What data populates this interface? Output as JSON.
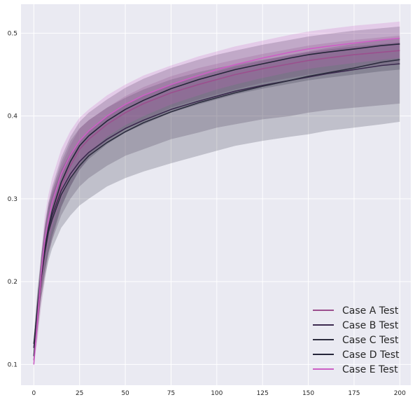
{
  "chart_data": {
    "type": "line",
    "title": "",
    "xlabel": "",
    "ylabel": "",
    "xlim": [
      -7,
      206
    ],
    "ylim": [
      0.075,
      0.535
    ],
    "xticks": [
      0,
      25,
      50,
      75,
      100,
      125,
      150,
      175,
      200
    ],
    "yticks": [
      0.1,
      0.2,
      0.3,
      0.4,
      0.5
    ],
    "grid": true,
    "legend_position": "bottom-right",
    "series": [
      {
        "name": "Case A Test",
        "color": "#9b4f8e",
        "x": [
          0,
          2,
          4,
          6,
          8,
          10,
          15,
          20,
          25,
          30,
          40,
          50,
          60,
          75,
          90,
          100,
          110,
          125,
          140,
          150,
          160,
          175,
          190,
          200
        ],
        "y": [
          0.105,
          0.15,
          0.2,
          0.235,
          0.26,
          0.28,
          0.315,
          0.34,
          0.36,
          0.372,
          0.39,
          0.404,
          0.415,
          0.428,
          0.438,
          0.444,
          0.45,
          0.457,
          0.463,
          0.467,
          0.47,
          0.474,
          0.477,
          0.479
        ],
        "band_lower": [
          0.1,
          0.13,
          0.17,
          0.2,
          0.23,
          0.25,
          0.29,
          0.315,
          0.335,
          0.35,
          0.37,
          0.384,
          0.395,
          0.41,
          0.42,
          0.426,
          0.432,
          0.44,
          0.446,
          0.45,
          0.453,
          0.458,
          0.462,
          0.464
        ],
        "band_upper": [
          0.11,
          0.17,
          0.23,
          0.265,
          0.29,
          0.31,
          0.34,
          0.365,
          0.385,
          0.395,
          0.41,
          0.424,
          0.435,
          0.448,
          0.458,
          0.463,
          0.468,
          0.475,
          0.481,
          0.485,
          0.488,
          0.492,
          0.495,
          0.497
        ]
      },
      {
        "name": "Case B Test",
        "color": "#3c2a4f",
        "x": [
          0,
          2,
          4,
          6,
          8,
          10,
          15,
          20,
          25,
          30,
          40,
          50,
          60,
          75,
          90,
          100,
          110,
          125,
          140,
          150,
          160,
          175,
          190,
          200
        ],
        "y": [
          0.12,
          0.17,
          0.21,
          0.24,
          0.265,
          0.28,
          0.31,
          0.33,
          0.345,
          0.356,
          0.372,
          0.385,
          0.395,
          0.408,
          0.418,
          0.424,
          0.43,
          0.437,
          0.443,
          0.447,
          0.451,
          0.456,
          0.461,
          0.463
        ],
        "band_lower": [
          0.11,
          0.15,
          0.19,
          0.215,
          0.235,
          0.25,
          0.28,
          0.3,
          0.315,
          0.325,
          0.34,
          0.352,
          0.36,
          0.372,
          0.38,
          0.386,
          0.39,
          0.396,
          0.4,
          0.404,
          0.407,
          0.41,
          0.413,
          0.415
        ],
        "band_upper": [
          0.13,
          0.19,
          0.23,
          0.265,
          0.29,
          0.305,
          0.335,
          0.355,
          0.37,
          0.382,
          0.4,
          0.414,
          0.425,
          0.438,
          0.448,
          0.454,
          0.46,
          0.467,
          0.474,
          0.478,
          0.482,
          0.487,
          0.492,
          0.494
        ]
      },
      {
        "name": "Case C Test",
        "color": "#2d2d3f",
        "x": [
          0,
          2,
          4,
          6,
          8,
          10,
          15,
          20,
          25,
          30,
          40,
          50,
          60,
          75,
          90,
          100,
          110,
          125,
          140,
          150,
          160,
          175,
          190,
          200
        ],
        "y": [
          0.125,
          0.165,
          0.205,
          0.235,
          0.26,
          0.275,
          0.305,
          0.325,
          0.34,
          0.352,
          0.368,
          0.381,
          0.392,
          0.405,
          0.416,
          0.422,
          0.428,
          0.436,
          0.443,
          0.448,
          0.452,
          0.458,
          0.465,
          0.468
        ],
        "band_lower": [
          0.115,
          0.145,
          0.18,
          0.205,
          0.225,
          0.24,
          0.265,
          0.28,
          0.292,
          0.3,
          0.315,
          0.325,
          0.333,
          0.343,
          0.352,
          0.358,
          0.364,
          0.37,
          0.375,
          0.378,
          0.382,
          0.386,
          0.39,
          0.393
        ],
        "band_upper": [
          0.135,
          0.185,
          0.23,
          0.265,
          0.295,
          0.31,
          0.345,
          0.37,
          0.385,
          0.395,
          0.41,
          0.422,
          0.432,
          0.444,
          0.453,
          0.458,
          0.462,
          0.468,
          0.473,
          0.477,
          0.48,
          0.484,
          0.487,
          0.489
        ]
      },
      {
        "name": "Case D Test",
        "color": "#26263a",
        "x": [
          0,
          2,
          4,
          6,
          8,
          10,
          15,
          20,
          25,
          30,
          40,
          50,
          60,
          75,
          90,
          100,
          110,
          125,
          140,
          150,
          160,
          175,
          190,
          200
        ],
        "y": [
          0.11,
          0.16,
          0.205,
          0.24,
          0.265,
          0.285,
          0.32,
          0.345,
          0.364,
          0.376,
          0.394,
          0.408,
          0.419,
          0.433,
          0.444,
          0.45,
          0.456,
          0.463,
          0.47,
          0.474,
          0.477,
          0.481,
          0.485,
          0.487
        ],
        "band_lower": [
          0.1,
          0.14,
          0.18,
          0.21,
          0.235,
          0.255,
          0.29,
          0.315,
          0.335,
          0.348,
          0.366,
          0.38,
          0.39,
          0.404,
          0.414,
          0.42,
          0.426,
          0.433,
          0.439,
          0.443,
          0.446,
          0.45,
          0.454,
          0.456
        ],
        "band_upper": [
          0.12,
          0.18,
          0.23,
          0.27,
          0.295,
          0.315,
          0.35,
          0.375,
          0.393,
          0.404,
          0.42,
          0.434,
          0.445,
          0.458,
          0.468,
          0.474,
          0.479,
          0.486,
          0.492,
          0.496,
          0.499,
          0.503,
          0.506,
          0.508
        ]
      },
      {
        "name": "Case E Test",
        "color": "#cc5fc5",
        "x": [
          0,
          2,
          4,
          6,
          8,
          10,
          15,
          20,
          25,
          30,
          40,
          50,
          60,
          75,
          90,
          100,
          110,
          125,
          140,
          150,
          160,
          175,
          190,
          200
        ],
        "y": [
          0.1,
          0.155,
          0.21,
          0.25,
          0.275,
          0.295,
          0.33,
          0.353,
          0.37,
          0.382,
          0.4,
          0.414,
          0.425,
          0.438,
          0.449,
          0.456,
          0.462,
          0.47,
          0.477,
          0.481,
          0.484,
          0.488,
          0.492,
          0.494
        ],
        "band_lower": [
          0.095,
          0.135,
          0.185,
          0.22,
          0.245,
          0.265,
          0.3,
          0.325,
          0.343,
          0.356,
          0.375,
          0.389,
          0.4,
          0.414,
          0.425,
          0.432,
          0.438,
          0.446,
          0.453,
          0.457,
          0.46,
          0.464,
          0.468,
          0.47
        ],
        "band_upper": [
          0.105,
          0.175,
          0.235,
          0.28,
          0.305,
          0.325,
          0.36,
          0.382,
          0.398,
          0.408,
          0.425,
          0.438,
          0.449,
          0.461,
          0.472,
          0.478,
          0.484,
          0.491,
          0.498,
          0.502,
          0.505,
          0.509,
          0.512,
          0.514
        ]
      }
    ]
  }
}
